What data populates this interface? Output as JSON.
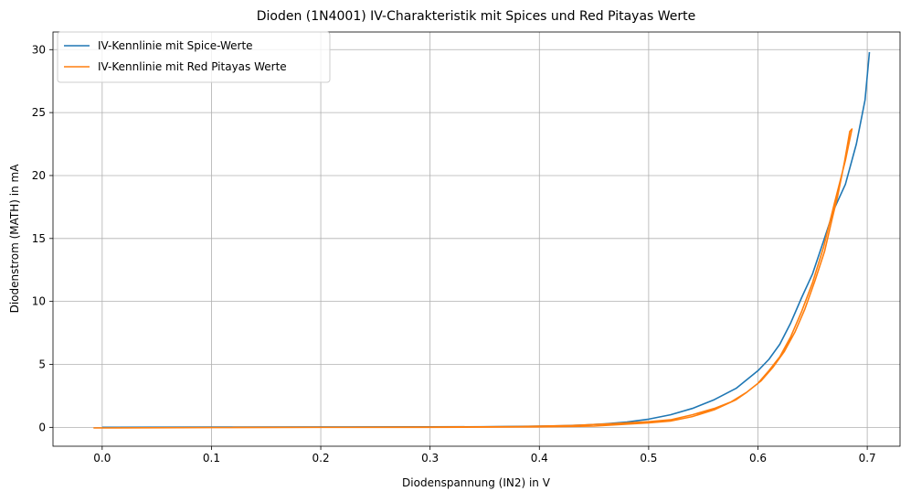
{
  "chart_data": {
    "type": "line",
    "title": "Dioden (1N4001) IV-Charakteristik mit Spices und Red Pitayas Werte",
    "xlabel": "Diodenspannung (IN2) in V",
    "ylabel": "Diodenstrom (MATH) in mA",
    "xlim": [
      -0.045,
      0.73
    ],
    "ylim": [
      -1.5,
      31.4
    ],
    "xticks": [
      0.0,
      0.1,
      0.2,
      0.3,
      0.4,
      0.5,
      0.6,
      0.7
    ],
    "xtick_labels": [
      "0.0",
      "0.1",
      "0.2",
      "0.3",
      "0.4",
      "0.5",
      "0.6",
      "0.7"
    ],
    "yticks": [
      0,
      5,
      10,
      15,
      20,
      25,
      30
    ],
    "ytick_labels": [
      "0",
      "5",
      "10",
      "15",
      "20",
      "25",
      "30"
    ],
    "grid": true,
    "legend_position": "top-left",
    "series": [
      {
        "name": "IV-Kennlinie mit Spice-Werte",
        "color": "#1f77b4",
        "points": [
          [
            0.0,
            0.0
          ],
          [
            0.1,
            0.02
          ],
          [
            0.2,
            0.03
          ],
          [
            0.3,
            0.04
          ],
          [
            0.35,
            0.05
          ],
          [
            0.4,
            0.09
          ],
          [
            0.42,
            0.12
          ],
          [
            0.44,
            0.18
          ],
          [
            0.46,
            0.28
          ],
          [
            0.48,
            0.42
          ],
          [
            0.5,
            0.65
          ],
          [
            0.52,
            1.0
          ],
          [
            0.54,
            1.5
          ],
          [
            0.56,
            2.2
          ],
          [
            0.58,
            3.1
          ],
          [
            0.6,
            4.5
          ],
          [
            0.61,
            5.4
          ],
          [
            0.62,
            6.6
          ],
          [
            0.63,
            8.3
          ],
          [
            0.64,
            10.3
          ],
          [
            0.65,
            12.2
          ],
          [
            0.66,
            14.8
          ],
          [
            0.67,
            17.4
          ],
          [
            0.68,
            19.3
          ],
          [
            0.69,
            22.5
          ],
          [
            0.698,
            26.0
          ],
          [
            0.702,
            29.8
          ]
        ]
      },
      {
        "name": "IV-Kennlinie mit Red Pitayas Werte",
        "color": "#ff7f0e",
        "points": [
          [
            -0.008,
            -0.05
          ],
          [
            0.1,
            -0.01
          ],
          [
            0.2,
            0.0
          ],
          [
            0.3,
            0.0
          ],
          [
            0.4,
            0.04
          ],
          [
            0.45,
            0.1
          ],
          [
            0.5,
            0.35
          ],
          [
            0.52,
            0.5
          ],
          [
            0.54,
            0.85
          ],
          [
            0.56,
            1.4
          ],
          [
            0.58,
            2.2
          ],
          [
            0.59,
            2.8
          ],
          [
            0.6,
            3.5
          ],
          [
            0.61,
            4.5
          ],
          [
            0.62,
            5.6
          ],
          [
            0.63,
            7.2
          ],
          [
            0.64,
            9.2
          ],
          [
            0.65,
            11.5
          ],
          [
            0.66,
            14.3
          ],
          [
            0.67,
            17.8
          ],
          [
            0.675,
            19.5
          ],
          [
            0.68,
            21.2
          ],
          [
            0.686,
            23.7
          ],
          [
            0.684,
            23.5
          ],
          [
            0.679,
            21.0
          ],
          [
            0.673,
            18.4
          ],
          [
            0.668,
            16.6
          ],
          [
            0.661,
            14.0
          ],
          [
            0.652,
            11.6
          ],
          [
            0.643,
            9.4
          ],
          [
            0.634,
            7.6
          ],
          [
            0.624,
            6.0
          ],
          [
            0.614,
            4.8
          ],
          [
            0.603,
            3.7
          ],
          [
            0.59,
            2.8
          ],
          [
            0.575,
            2.0
          ],
          [
            0.56,
            1.5
          ],
          [
            0.54,
            1.0
          ],
          [
            0.52,
            0.6
          ],
          [
            0.5,
            0.45
          ],
          [
            0.47,
            0.3
          ],
          [
            0.43,
            0.15
          ],
          [
            0.38,
            0.06
          ],
          [
            0.3,
            0.02
          ],
          [
            0.2,
            0.0
          ],
          [
            0.1,
            -0.02
          ],
          [
            0.0,
            -0.05
          ],
          [
            -0.008,
            -0.05
          ]
        ]
      }
    ]
  }
}
